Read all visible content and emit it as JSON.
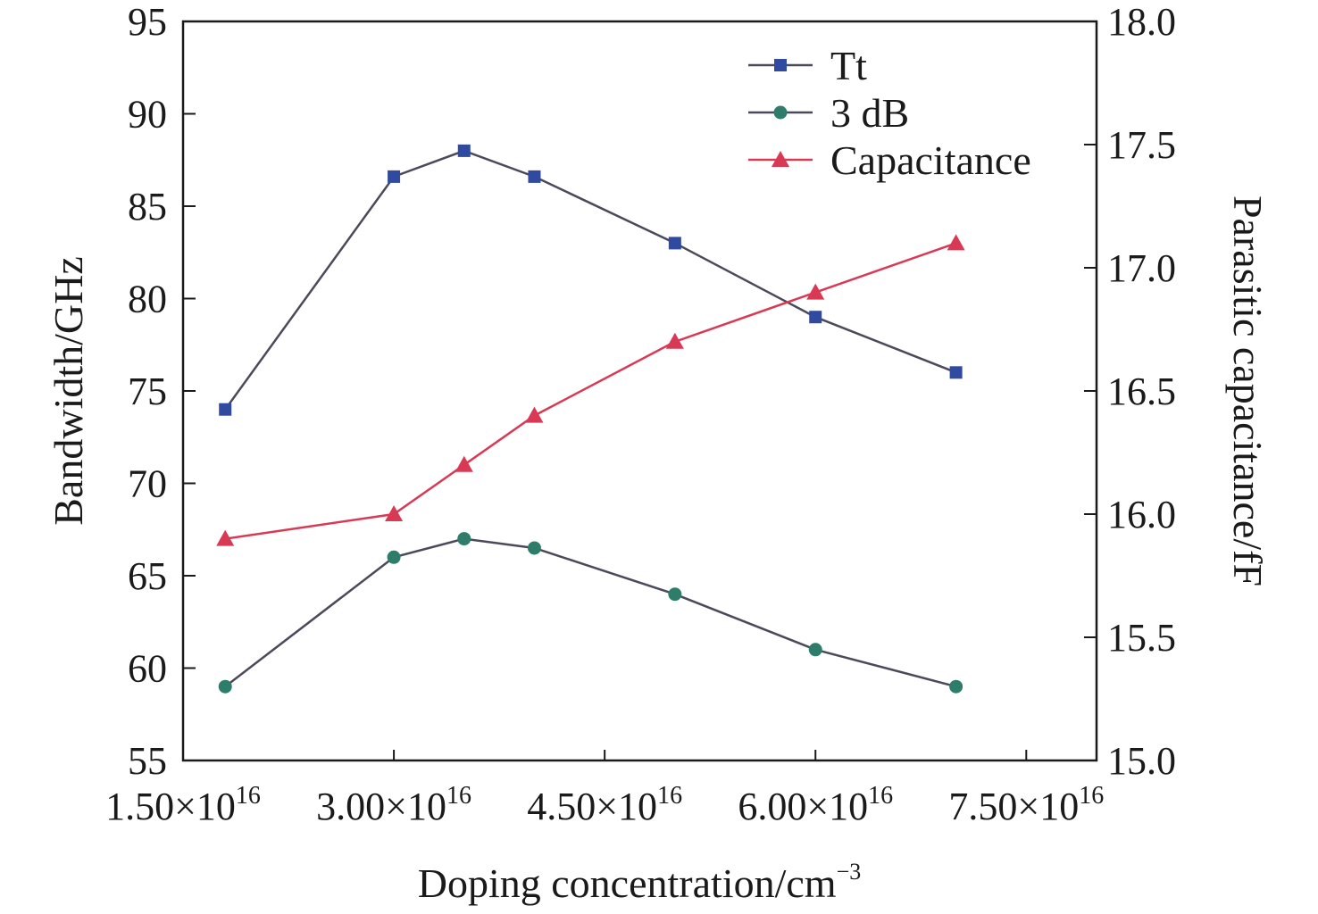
{
  "chart_data": {
    "type": "line",
    "xlabel": "Doping concentration/cm",
    "xlabel_sup": "−3",
    "ylabel_left": "Bandwidth/GHz",
    "ylabel_right": "Parasitic capacitance/fF",
    "x": [
      1.8e+16,
      3e+16,
      3.5e+16,
      4e+16,
      5e+16,
      6e+16,
      7e+16
    ],
    "xlim": [
      1.5e+16,
      8e+16
    ],
    "x_tick_labels": [
      {
        "value": 1.5e+16,
        "mantissa": "1.50×10",
        "exp": "16"
      },
      {
        "value": 3e+16,
        "mantissa": "3.00×10",
        "exp": "16"
      },
      {
        "value": 4.5e+16,
        "mantissa": "4.50×10",
        "exp": "16"
      },
      {
        "value": 6e+16,
        "mantissa": "6.00×10",
        "exp": "16"
      },
      {
        "value": 7.5e+16,
        "mantissa": "7.50×10",
        "exp": "16"
      }
    ],
    "ylim_left": [
      55,
      95
    ],
    "y_ticks_left": [
      "55",
      "60",
      "65",
      "70",
      "75",
      "80",
      "85",
      "90",
      "95"
    ],
    "ylim_right": [
      15.0,
      18.0
    ],
    "y_ticks_right": [
      "15.0",
      "15.5",
      "16.0",
      "16.5",
      "17.0",
      "17.5",
      "18.0"
    ],
    "legend_position": "top-right",
    "grid": false,
    "series": [
      {
        "name": "Tt",
        "axis": "left",
        "marker": "square",
        "color": "#2f4a9e",
        "values": [
          74,
          86.6,
          88,
          86.6,
          83,
          79,
          76
        ]
      },
      {
        "name": "3 dB",
        "axis": "left",
        "marker": "circle",
        "color": "#2e7d6a",
        "values": [
          59,
          66,
          67,
          66.5,
          64,
          61,
          59
        ]
      },
      {
        "name": "Capacitance",
        "axis": "right",
        "marker": "triangle",
        "color": "#d83a55",
        "values": [
          15.9,
          16.0,
          16.2,
          16.4,
          16.7,
          16.9,
          17.1
        ]
      }
    ],
    "line_color": "#4a4a5a"
  }
}
